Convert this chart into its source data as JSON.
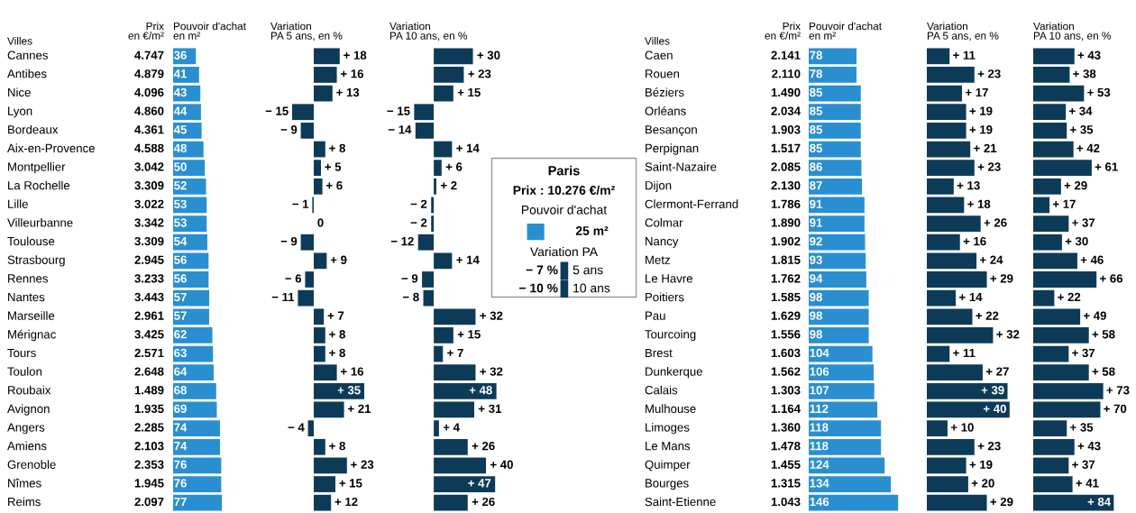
{
  "chart_data": [
    {
      "type": "other",
      "ylabel": "Villes",
      "title": "Prix\nen €/m²",
      "categories": [
        "Cannes",
        "Antibes",
        "Nice",
        "Lyon",
        "Bordeaux",
        "Aix-en-Provence",
        "Montpellier",
        "La Rochelle",
        "Lille",
        "Villeurbanne",
        "Toulouse",
        "Strasbourg",
        "Rennes",
        "Nantes",
        "Marseille",
        "Mérignac",
        "Tours",
        "Toulon",
        "Roubaix",
        "Avignon",
        "Angers",
        "Amiens",
        "Grenoble",
        "Nîmes",
        "Reims"
      ],
      "values": [
        4747,
        4879,
        4096,
        4860,
        4361,
        4588,
        3042,
        3309,
        3022,
        3342,
        3309,
        2945,
        3233,
        3443,
        2961,
        3425,
        2571,
        2648,
        1489,
        1935,
        2285,
        2103,
        2353,
        1945,
        2097
      ],
      "value_labels": [
        "4.747",
        "4.879",
        "4.096",
        "4.860",
        "4.361",
        "4.588",
        "3.042",
        "3.309",
        "3.022",
        "3.342",
        "3.309",
        "2.945",
        "3.233",
        "3.443",
        "2.961",
        "3.425",
        "2.571",
        "2.648",
        "1.489",
        "1.935",
        "2.285",
        "2.103",
        "2.353",
        "1.945",
        "2.097"
      ]
    },
    {
      "type": "bar",
      "orientation": "horizontal",
      "title": "Pouvoir d'achat\nen m²",
      "data_labels": true,
      "color": "#2a8fd0",
      "categories": [
        null,
        null,
        null,
        null,
        null,
        null,
        null,
        null,
        null,
        null,
        null,
        null,
        null,
        null,
        null,
        null,
        null,
        null,
        null,
        null,
        null,
        null,
        null,
        null,
        null
      ],
      "values": [
        36,
        41,
        43,
        44,
        45,
        48,
        50,
        52,
        53,
        53,
        54,
        56,
        56,
        57,
        57,
        62,
        63,
        64,
        68,
        69,
        74,
        74,
        76,
        76,
        77
      ]
    },
    {
      "type": "bar",
      "orientation": "horizontal",
      "title": "Variation\nPA 5 ans, en %",
      "color": "#0d3b57",
      "categories": [
        null,
        null,
        null,
        null,
        null,
        null,
        null,
        null,
        null,
        null,
        null,
        null,
        null,
        null,
        null,
        null,
        null,
        null,
        null,
        null,
        null,
        null,
        null,
        null,
        null
      ],
      "values": [
        18,
        16,
        13,
        -15,
        -9,
        8,
        5,
        6,
        -1,
        0,
        -9,
        9,
        -6,
        -11,
        7,
        8,
        8,
        16,
        35,
        21,
        -4,
        8,
        23,
        15,
        12
      ],
      "value_labels": [
        "+ 18",
        "+ 16",
        "+ 13",
        "− 15",
        "− 9",
        "+ 8",
        "+ 5",
        "+ 6",
        "− 1",
        "0",
        "− 9",
        "+ 9",
        "− 6",
        "− 11",
        "+ 7",
        "+ 8",
        "+ 8",
        "+ 16",
        "+ 35",
        "+ 21",
        "− 4",
        "+ 8",
        "+ 23",
        "+ 15",
        "+ 12"
      ]
    },
    {
      "type": "bar",
      "orientation": "horizontal",
      "title": "Variation\nPA 10 ans, en %",
      "color": "#0d3b57",
      "categories": [
        null,
        null,
        null,
        null,
        null,
        null,
        null,
        null,
        null,
        null,
        null,
        null,
        null,
        null,
        null,
        null,
        null,
        null,
        null,
        null,
        null,
        null,
        null,
        null,
        null
      ],
      "values": [
        30,
        23,
        15,
        -15,
        -14,
        14,
        6,
        2,
        -2,
        -2,
        -12,
        14,
        -9,
        -8,
        32,
        15,
        7,
        32,
        48,
        31,
        4,
        26,
        40,
        47,
        26
      ],
      "value_labels": [
        "+ 30",
        "+ 23",
        "+ 15",
        "− 15",
        "− 14",
        "+ 14",
        "+ 6",
        "+ 2",
        "− 2",
        "− 2",
        "− 12",
        "+ 14",
        "− 9",
        "− 8",
        "+ 32",
        "+ 15",
        "+ 7",
        "+ 32",
        "+ 48",
        "+ 31",
        "+ 4",
        "+ 26",
        "+ 40",
        "+ 47",
        "+ 26"
      ]
    },
    {
      "type": "other",
      "title": "Paris",
      "colors": [
        "#2a8fd0",
        "#0d3b57",
        "#0d3b57"
      ],
      "annotations": [
        "Prix : 10.276 €/m²",
        "Pouvoir d'achat",
        "25 m²",
        "Variation PA",
        "− 7 %",
        "5 ans",
        "− 10 %",
        "10 ans"
      ]
    },
    {
      "type": "other",
      "ylabel": "Villes",
      "title": "Prix\nen €/m²",
      "categories": [
        "Caen",
        "Rouen",
        "Béziers",
        "Orléans",
        "Besançon",
        "Perpignan",
        "Saint-Nazaire",
        "Dijon",
        "Clermont-Ferrand",
        "Colmar",
        "Nancy",
        "Metz",
        "Le Havre",
        "Poitiers",
        "Pau",
        "Tourcoing",
        "Brest",
        "Dunkerque",
        "Calais",
        "Mulhouse",
        "Limoges",
        "Le Mans",
        "Quimper",
        "Bourges",
        "Saint-Etienne"
      ],
      "values": [
        2141,
        2110,
        1490,
        2034,
        1903,
        1517,
        2085,
        2130,
        1786,
        1890,
        1902,
        1815,
        1762,
        1585,
        1629,
        1556,
        1603,
        1562,
        1303,
        1164,
        1360,
        1478,
        1455,
        1315,
        1043
      ],
      "value_labels": [
        "2.141",
        "2.110",
        "1.490",
        "2.034",
        "1.903",
        "1.517",
        "2.085",
        "2.130",
        "1.786",
        "1.890",
        "1.902",
        "1.815",
        "1.762",
        "1.585",
        "1.629",
        "1.556",
        "1.603",
        "1.562",
        "1.303",
        "1.164",
        "1.360",
        "1.478",
        "1.455",
        "1.315",
        "1.043"
      ]
    },
    {
      "type": "bar",
      "orientation": "horizontal",
      "title": "Pouvoir d'achat\nen m²",
      "data_labels": true,
      "color": "#2a8fd0",
      "categories": [
        null,
        null,
        null,
        null,
        null,
        null,
        null,
        null,
        null,
        null,
        null,
        null,
        null,
        null,
        null,
        null,
        null,
        null,
        null,
        null,
        null,
        null,
        null,
        null,
        null
      ],
      "values": [
        78,
        78,
        85,
        85,
        85,
        85,
        86,
        87,
        91,
        91,
        92,
        93,
        94,
        98,
        98,
        98,
        104,
        106,
        107,
        112,
        118,
        118,
        124,
        134,
        146
      ]
    },
    {
      "type": "bar",
      "orientation": "horizontal",
      "title": "Variation\nPA 5 ans, en %",
      "color": "#0d3b57",
      "categories": [
        null,
        null,
        null,
        null,
        null,
        null,
        null,
        null,
        null,
        null,
        null,
        null,
        null,
        null,
        null,
        null,
        null,
        null,
        null,
        null,
        null,
        null,
        null,
        null,
        null
      ],
      "values": [
        11,
        23,
        17,
        19,
        19,
        21,
        23,
        13,
        18,
        26,
        16,
        24,
        29,
        14,
        22,
        32,
        11,
        27,
        39,
        40,
        10,
        23,
        19,
        20,
        29
      ],
      "value_labels": [
        "+ 11",
        "+ 23",
        "+ 17",
        "+ 19",
        "+ 19",
        "+ 21",
        "+ 23",
        "+ 13",
        "+ 18",
        "+ 26",
        "+ 16",
        "+ 24",
        "+ 29",
        "+ 14",
        "+ 22",
        "+ 32",
        "+ 11",
        "+ 27",
        "+ 39",
        "+ 40",
        "+ 10",
        "+ 23",
        "+ 19",
        "+ 20",
        "+ 29"
      ]
    },
    {
      "type": "bar",
      "orientation": "horizontal",
      "title": "Variation\nPA 10 ans, en %",
      "color": "#0d3b57",
      "categories": [
        null,
        null,
        null,
        null,
        null,
        null,
        null,
        null,
        null,
        null,
        null,
        null,
        null,
        null,
        null,
        null,
        null,
        null,
        null,
        null,
        null,
        null,
        null,
        null,
        null
      ],
      "values": [
        43,
        38,
        53,
        34,
        35,
        42,
        61,
        29,
        17,
        37,
        30,
        46,
        66,
        22,
        49,
        58,
        37,
        58,
        73,
        70,
        35,
        43,
        37,
        41,
        84
      ],
      "value_labels": [
        "+ 43",
        "+ 38",
        "+ 53",
        "+ 34",
        "+ 35",
        "+ 42",
        "+ 61",
        "+ 29",
        "+ 17",
        "+ 37",
        "+ 30",
        "+ 46",
        "+ 66",
        "+ 22",
        "+ 49",
        "+ 58",
        "+ 37",
        "+ 58",
        "+ 73",
        "+ 70",
        "+ 35",
        "+ 43",
        "+ 37",
        "+ 41",
        "+ 84"
      ]
    }
  ]
}
